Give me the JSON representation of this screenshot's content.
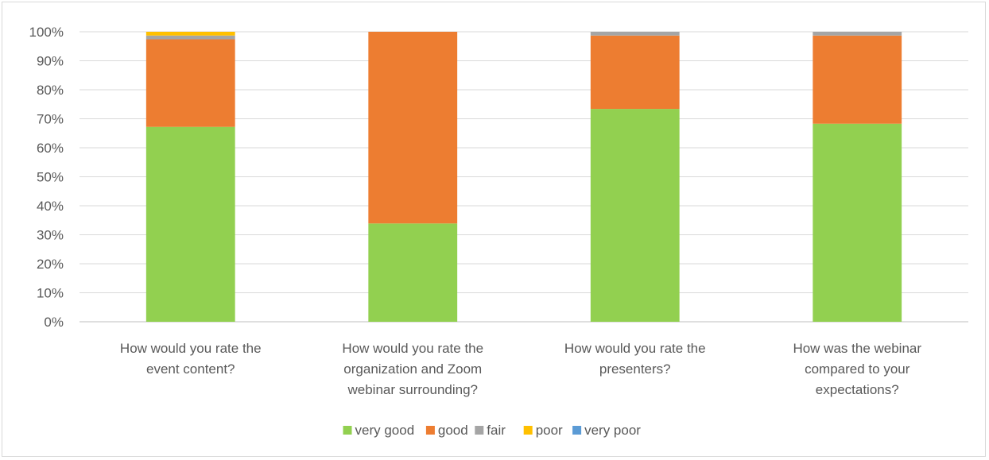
{
  "chart_data": {
    "type": "bar",
    "stacked": true,
    "categories": [
      [
        "How would you rate the",
        "event content?"
      ],
      [
        "How would you rate the",
        "organization and Zoom",
        "webinar surrounding?"
      ],
      [
        "How would you rate the",
        "presenters?"
      ],
      [
        "How was the webinar",
        "compared to your",
        "expectations?"
      ]
    ],
    "series": [
      {
        "name": "very good",
        "color": "#92d050",
        "values": [
          67.2,
          33.9,
          73.4,
          68.3
        ]
      },
      {
        "name": "good",
        "color": "#ed7d31",
        "values": [
          30.2,
          66.1,
          25.3,
          30.4
        ]
      },
      {
        "name": "fair",
        "color": "#a5a5a5",
        "values": [
          1.3,
          0,
          1.3,
          1.3
        ]
      },
      {
        "name": "poor",
        "color": "#ffc000",
        "values": [
          1.3,
          0,
          0,
          0
        ]
      },
      {
        "name": "very poor",
        "color": "#5b9bd5",
        "values": [
          0,
          0,
          0,
          0
        ]
      }
    ],
    "ylim": [
      0,
      100
    ],
    "ytick_labels": [
      "0%",
      "10%",
      "20%",
      "30%",
      "40%",
      "50%",
      "60%",
      "70%",
      "80%",
      "90%",
      "100%"
    ],
    "grid": true,
    "legend_position": "bottom",
    "title": "",
    "xlabel": "",
    "ylabel": ""
  }
}
